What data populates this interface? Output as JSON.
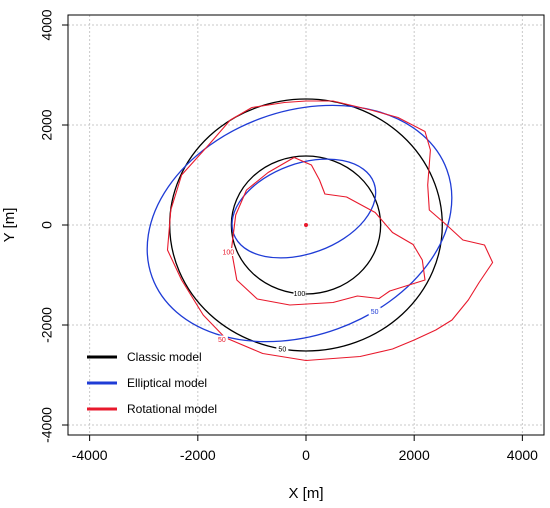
{
  "chart_data": {
    "type": "line",
    "title": "",
    "xlabel": "X [m]",
    "ylabel": "Y [m]",
    "xlim": [
      -4400,
      4400
    ],
    "ylim": [
      -4200,
      4200
    ],
    "xticks": [
      -4000,
      -2000,
      0,
      2000,
      4000
    ],
    "yticks": [
      -4000,
      -2000,
      0,
      2000,
      4000
    ],
    "xtick_labels": [
      "-4000",
      "-2000",
      "0",
      "2000",
      "4000"
    ],
    "ytick_labels": [
      "-4000",
      "-2000",
      "0",
      "2000",
      "4000"
    ],
    "grid": true,
    "legend_position": "bottom-left",
    "source_point": {
      "x": 0,
      "y": 0,
      "color": "#e8192c"
    },
    "series": [
      {
        "name": "Classic model",
        "color": "#000000",
        "contours": [
          {
            "level": "100",
            "shape": "circle",
            "center": [
              0,
              0
            ],
            "radius": 1380
          },
          {
            "level": "50",
            "shape": "circle",
            "center": [
              0,
              0
            ],
            "radius": 2520
          }
        ]
      },
      {
        "name": "Elliptical model",
        "color": "#1f3cd6",
        "contours": [
          {
            "level": "50",
            "shape": "ellipse",
            "center": [
              -40,
              330
            ],
            "rx": 1380,
            "ry": 900,
            "rotation_deg": -20
          },
          {
            "level": "50",
            "shape": "ellipse",
            "center": [
              -120,
              30
            ],
            "rx": 2900,
            "ry": 2240,
            "rotation_deg": -20
          }
        ]
      },
      {
        "name": "Rotational model",
        "color": "#e8192c",
        "contours": [
          {
            "level": "100",
            "shape": "polygon",
            "points": [
              [
                -220,
                1350
              ],
              [
                100,
                1200
              ],
              [
                250,
                900
              ],
              [
                350,
                620
              ],
              [
                750,
                560
              ],
              [
                1280,
                250
              ],
              [
                1600,
                -150
              ],
              [
                1980,
                -390
              ],
              [
                2150,
                -700
              ],
              [
                2200,
                -1100
              ],
              [
                1550,
                -1320
              ],
              [
                1350,
                -1470
              ],
              [
                950,
                -1420
              ],
              [
                500,
                -1550
              ],
              [
                -300,
                -1600
              ],
              [
                -900,
                -1480
              ],
              [
                -1280,
                -1100
              ],
              [
                -1380,
                -500
              ],
              [
                -1300,
                200
              ],
              [
                -1100,
                700
              ],
              [
                -700,
                1050
              ]
            ]
          },
          {
            "level": "50",
            "shape": "polygon",
            "points": [
              [
                -1000,
                2350
              ],
              [
                -400,
                2450
              ],
              [
                0,
                2480
              ],
              [
                500,
                2480
              ],
              [
                1200,
                2300
              ],
              [
                1700,
                2150
              ],
              [
                2200,
                1870
              ],
              [
                2300,
                1500
              ],
              [
                2250,
                800
              ],
              [
                2280,
                300
              ],
              [
                2600,
                0
              ],
              [
                2900,
                -300
              ],
              [
                3300,
                -400
              ],
              [
                3450,
                -750
              ],
              [
                3200,
                -1150
              ],
              [
                3000,
                -1500
              ],
              [
                2700,
                -1900
              ],
              [
                2400,
                -2100
              ],
              [
                2000,
                -2300
              ],
              [
                1600,
                -2480
              ],
              [
                1000,
                -2630
              ],
              [
                0,
                -2710
              ],
              [
                -800,
                -2570
              ],
              [
                -1500,
                -2250
              ],
              [
                -1900,
                -1800
              ],
              [
                -2300,
                -1100
              ],
              [
                -2560,
                -500
              ],
              [
                -2500,
                300
              ],
              [
                -2300,
                1000
              ],
              [
                -1800,
                1600
              ],
              [
                -1400,
                2100
              ]
            ]
          }
        ]
      }
    ]
  },
  "legend": {
    "items": [
      {
        "label": "Classic model",
        "color": "#000000"
      },
      {
        "label": "Elliptical model",
        "color": "#1f3cd6"
      },
      {
        "label": "Rotational model",
        "color": "#e8192c"
      }
    ]
  }
}
